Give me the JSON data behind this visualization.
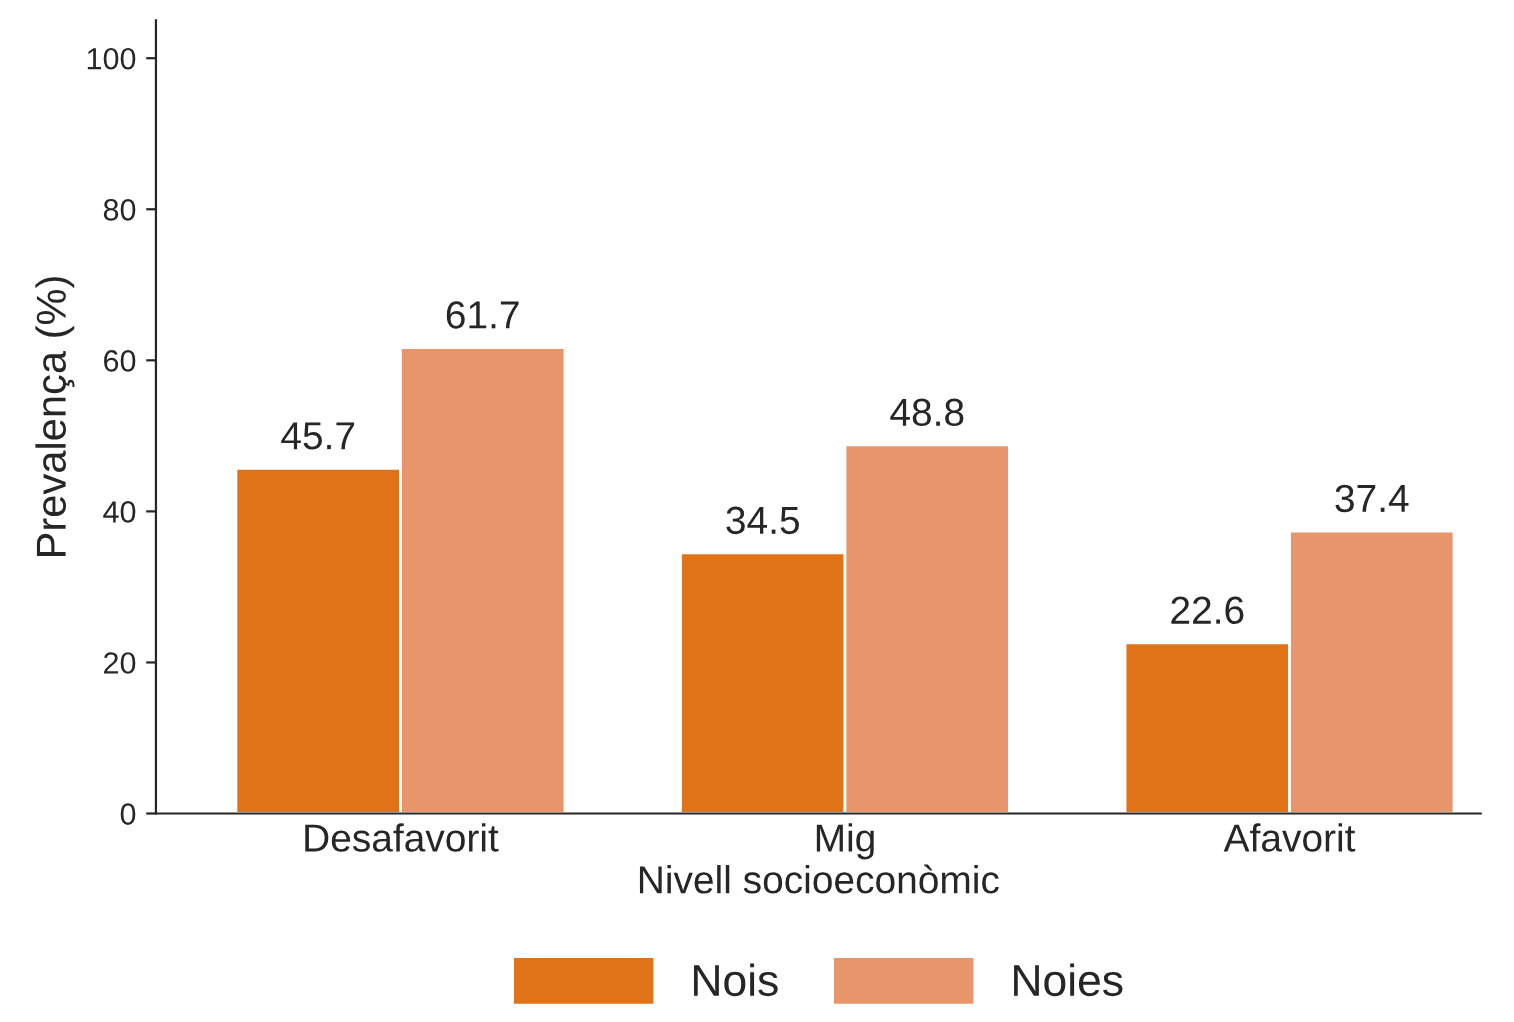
{
  "chart_data": {
    "type": "bar",
    "xlabel": "Nivell socioeconòmic",
    "ylabel": "Prevalença (%)",
    "categories": [
      "Desafavorit",
      "Mig",
      "Afavorit"
    ],
    "series": [
      {
        "name": "Nois",
        "color": "#e07318",
        "values": [
          45.7,
          34.5,
          22.6
        ]
      },
      {
        "name": "Noies",
        "color": "#e8956b",
        "values": [
          61.7,
          48.8,
          37.4
        ]
      }
    ],
    "ylim": [
      0,
      105
    ],
    "yticks": [
      0,
      20,
      40,
      60,
      80,
      100
    ],
    "data_labels": true,
    "grid": false,
    "legend": "bottom"
  }
}
